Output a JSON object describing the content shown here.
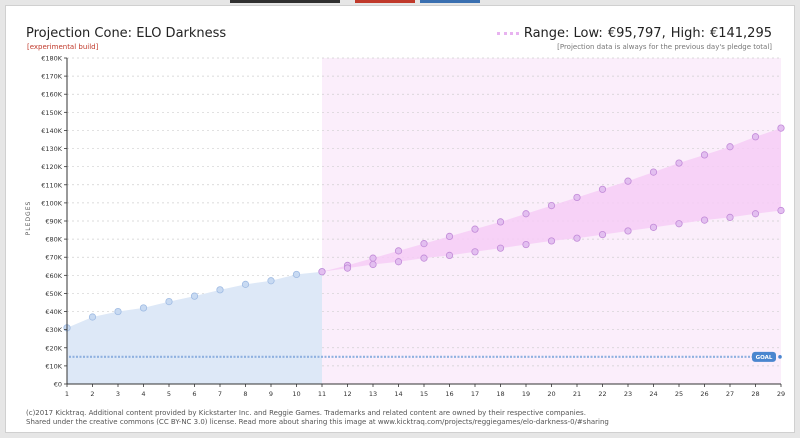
{
  "header": {
    "title": "Projection Cone: ELO Darkness",
    "subtitle": "[experimental build]",
    "range_prefix": "Range: Low:",
    "range_low": "€95,797,",
    "range_high_label": "High:",
    "range_high": "€141,295",
    "note": "[Projection data is always for the previous day's pledge total]"
  },
  "footer": {
    "line1": "(c)2017 Kicktraq. Additional content provided by Kickstarter Inc. and Reggie Games. Trademarks and related content are owned by their respective companies.",
    "line2": "Shared under the creative commons (CC BY-NC 3.0) license. Read more about sharing this image at www.kicktraq.com/projects/reggiegames/elo-darkness-0/#sharing"
  },
  "colors": {
    "actual_fill": "#dde8f7",
    "actual_point": "#c8daf2",
    "actual_point_stroke": "#9fbbe3",
    "projection_bg": "#fbeefb",
    "cone_fill": "#f6cdf6",
    "cone_point": "#e3bff0",
    "cone_point_stroke": "#c28ad8",
    "goal_line": "#8fb1e0",
    "goal_badge": "#4a86cf",
    "grid": "#cfcfcf"
  },
  "chart_data": {
    "type": "area",
    "ylabel": "PLEDGES",
    "x": [
      1,
      2,
      3,
      4,
      5,
      6,
      7,
      8,
      9,
      10,
      11,
      12,
      13,
      14,
      15,
      16,
      17,
      18,
      19,
      20,
      21,
      22,
      23,
      24,
      25,
      26,
      27,
      28,
      29
    ],
    "ylim": [
      0,
      180000
    ],
    "ytick_step": 10000,
    "ytick_labels": [
      "€0",
      "€10K",
      "€20K",
      "€30K",
      "€40K",
      "€50K",
      "€60K",
      "€70K",
      "€80K",
      "€90K",
      "€100K",
      "€110K",
      "€120K",
      "€130K",
      "€140K",
      "€150K",
      "€160K",
      "€170K",
      "€180K"
    ],
    "series": [
      {
        "kind": "actual",
        "x": [
          1,
          2,
          3,
          4,
          5,
          6,
          7,
          8,
          9,
          10,
          11
        ],
        "values": [
          31000,
          37000,
          40000,
          42000,
          45500,
          48500,
          52000,
          55000,
          57000,
          60500,
          62000
        ]
      },
      {
        "kind": "projection-high",
        "x": [
          11,
          12,
          13,
          14,
          15,
          16,
          17,
          18,
          19,
          20,
          21,
          22,
          23,
          24,
          25,
          26,
          27,
          28,
          29
        ],
        "values": [
          62000,
          65500,
          69500,
          73500,
          77500,
          81500,
          85500,
          89500,
          94000,
          98500,
          103000,
          107500,
          112000,
          117000,
          122000,
          126500,
          131000,
          136500,
          141295
        ]
      },
      {
        "kind": "projection-low",
        "x": [
          11,
          12,
          13,
          14,
          15,
          16,
          17,
          18,
          19,
          20,
          21,
          22,
          23,
          24,
          25,
          26,
          27,
          28,
          29
        ],
        "values": [
          62000,
          64000,
          66000,
          67500,
          69500,
          71000,
          73000,
          75000,
          77000,
          79000,
          80500,
          82500,
          84500,
          86500,
          88500,
          90500,
          92000,
          94000,
          95797
        ]
      }
    ],
    "goal": {
      "value": 15000,
      "label": "GOAL"
    },
    "grid": true
  }
}
